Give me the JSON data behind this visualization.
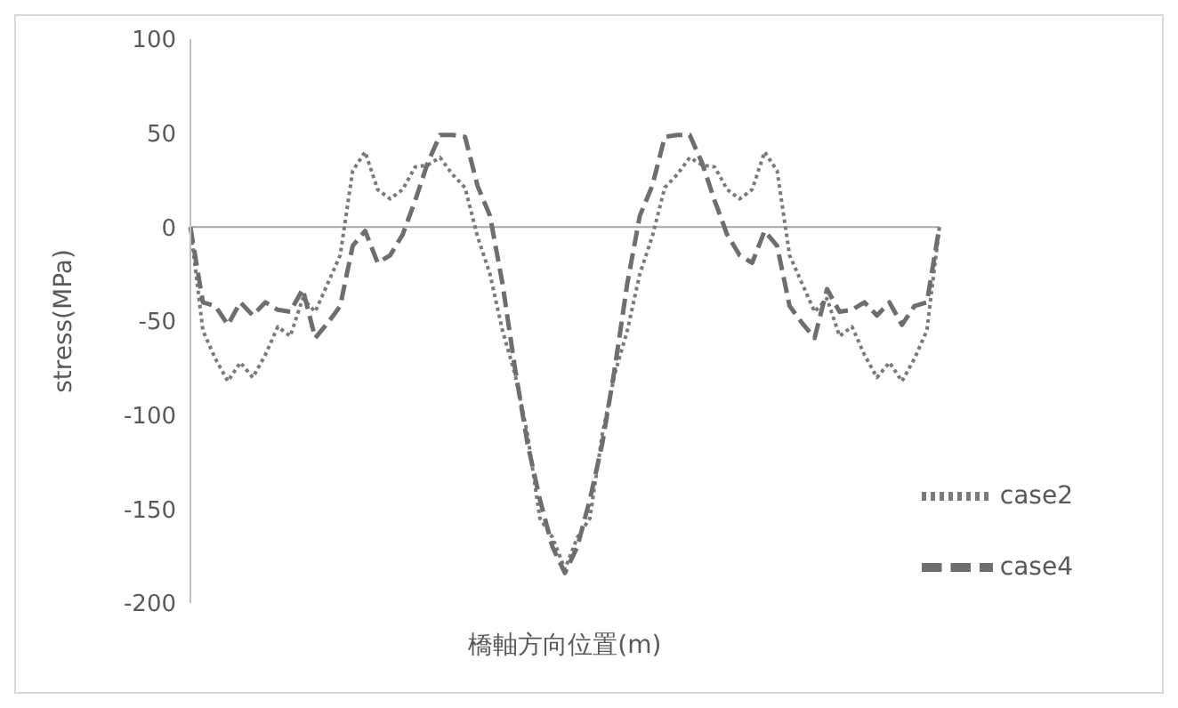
{
  "chart_data": {
    "type": "line",
    "xlabel": "橋軸方向位置(m)",
    "ylabel": "stress(MPa)",
    "categories": [
      null,
      null,
      null,
      null,
      null,
      null,
      null,
      null,
      null,
      null,
      null,
      null,
      null,
      null,
      null,
      null,
      null,
      null,
      null,
      null,
      null,
      null,
      null,
      null,
      null,
      null,
      null,
      null,
      null,
      null,
      null,
      null,
      null,
      null,
      null,
      null,
      null,
      null,
      null,
      null,
      null,
      null,
      null,
      null,
      null,
      null,
      null,
      null,
      null,
      null,
      null,
      null,
      null,
      null,
      null,
      null,
      null,
      null,
      null,
      null,
      null
    ],
    "series": [
      {
        "name": "case2",
        "color": "#7a7a7a",
        "line_style": "dotted",
        "values": [
          0,
          -55,
          -70,
          -82,
          -72,
          -80,
          -68,
          -53,
          -58,
          -38,
          -45,
          -30,
          -15,
          30,
          40,
          20,
          15,
          20,
          32,
          33,
          37,
          28,
          21,
          -5,
          -25,
          -55,
          -78,
          -110,
          -155,
          -165,
          -182,
          -165,
          -155,
          -110,
          -78,
          -55,
          -25,
          -5,
          21,
          28,
          37,
          33,
          32,
          20,
          15,
          20,
          40,
          30,
          -15,
          -30,
          -45,
          -38,
          -58,
          -53,
          -68,
          -80,
          -72,
          -82,
          -70,
          -55,
          0
        ]
      },
      {
        "name": "case4",
        "color": "#6e6e6e",
        "line_style": "dashed",
        "values": [
          0,
          -40,
          -42,
          -52,
          -40,
          -47,
          -40,
          -44,
          -45,
          -33,
          -59,
          -51,
          -42,
          -10,
          -2,
          -19,
          -15,
          -4,
          14,
          34,
          49,
          49,
          48,
          22,
          6,
          -30,
          -75,
          -115,
          -145,
          -170,
          -184,
          -170,
          -145,
          -115,
          -75,
          -30,
          6,
          22,
          48,
          49,
          49,
          34,
          14,
          -4,
          -15,
          -19,
          -2,
          -10,
          -42,
          -51,
          -59,
          -33,
          -45,
          -44,
          -40,
          -47,
          -40,
          -52,
          -42,
          -40,
          0
        ]
      }
    ],
    "ylim": [
      -200,
      100
    ],
    "yticks": [
      -200,
      -150,
      -100,
      -50,
      0,
      50,
      100
    ],
    "tick_labels": "y",
    "legend": "bottom right"
  }
}
